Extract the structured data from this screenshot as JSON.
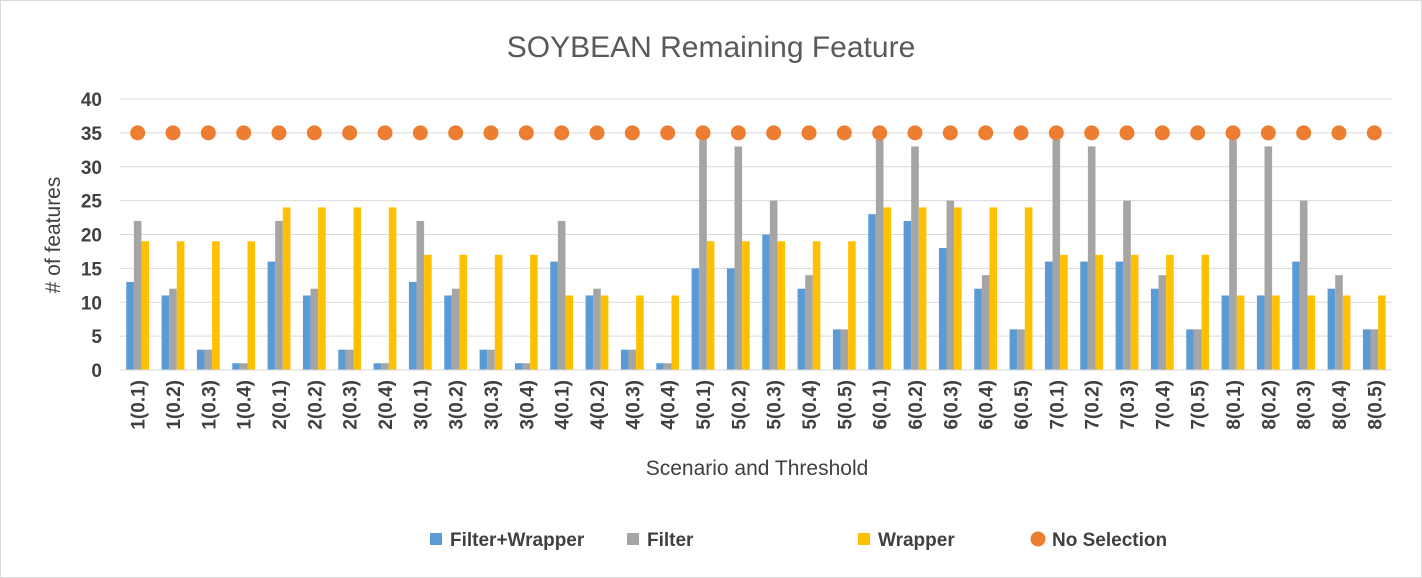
{
  "chart_data": {
    "type": "bar",
    "title": "SOYBEAN Remaining Feature",
    "xlabel": "Scenario and Threshold",
    "ylabel": "#  of features",
    "ylim": [
      0,
      40
    ],
    "yticks": [
      "0",
      "5",
      "10",
      "15",
      "20",
      "25",
      "30",
      "35",
      "40"
    ],
    "grid": true,
    "legend_position": "bottom",
    "categories": [
      "1(0.1)",
      "1(0.2)",
      "1(0.3)",
      "1(0.4)",
      "2(0.1)",
      "2(0.2)",
      "2(0.3)",
      "2(0.4)",
      "3(0.1)",
      "3(0.2)",
      "3(0.3)",
      "3(0.4)",
      "4(0.1)",
      "4(0.2)",
      "4(0.3)",
      "4(0.4)",
      "5(0.1)",
      "5(0.2)",
      "5(0.3)",
      "5(0.4)",
      "5(0.5)",
      "6(0.1)",
      "6(0.2)",
      "6(0.3)",
      "6(0.4)",
      "6(0.5)",
      "7(0.1)",
      "7(0.2)",
      "7(0.3)",
      "7(0.4)",
      "7(0.5)",
      "8(0.1)",
      "8(0.2)",
      "8(0.3)",
      "8(0.4)",
      "8(0.5)"
    ],
    "series": [
      {
        "name": "Filter+Wrapper",
        "kind": "bar",
        "color": "#5b9bd5",
        "values": [
          13,
          11,
          3,
          1,
          16,
          11,
          3,
          1,
          13,
          11,
          3,
          1,
          16,
          11,
          3,
          1,
          15,
          15,
          20,
          12,
          6,
          23,
          22,
          18,
          12,
          6,
          16,
          16,
          16,
          12,
          6,
          11,
          11,
          16,
          12,
          6
        ]
      },
      {
        "name": "Filter",
        "kind": "bar",
        "color": "#a5a5a5",
        "values": [
          22,
          12,
          3,
          1,
          22,
          12,
          3,
          1,
          22,
          12,
          3,
          1,
          22,
          12,
          3,
          1,
          34,
          33,
          25,
          14,
          6,
          34,
          33,
          25,
          14,
          6,
          34,
          33,
          25,
          14,
          6,
          34,
          33,
          25,
          14,
          6
        ]
      },
      {
        "name": "Wrapper",
        "kind": "bar",
        "color": "#ffc000",
        "values": [
          19,
          19,
          19,
          19,
          24,
          24,
          24,
          24,
          17,
          17,
          17,
          17,
          11,
          11,
          11,
          11,
          19,
          19,
          19,
          19,
          19,
          24,
          24,
          24,
          24,
          24,
          17,
          17,
          17,
          17,
          17,
          11,
          11,
          11,
          11,
          11
        ]
      },
      {
        "name": "No Selection",
        "kind": "point",
        "color": "#ed7d31",
        "values": [
          35,
          35,
          35,
          35,
          35,
          35,
          35,
          35,
          35,
          35,
          35,
          35,
          35,
          35,
          35,
          35,
          35,
          35,
          35,
          35,
          35,
          35,
          35,
          35,
          35,
          35,
          35,
          35,
          35,
          35,
          35,
          35,
          35,
          35,
          35,
          35
        ]
      }
    ]
  }
}
